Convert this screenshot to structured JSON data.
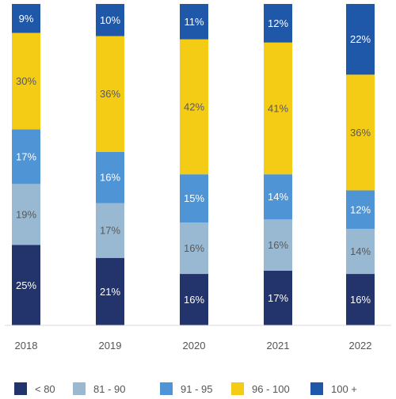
{
  "chart_data": {
    "type": "bar",
    "stacked": true,
    "normalized": true,
    "categories": [
      "2018",
      "2019",
      "2020",
      "2021",
      "2022"
    ],
    "series": [
      {
        "name": "< 80",
        "color": "#22346b",
        "values": [
          25,
          21,
          16,
          17,
          16
        ]
      },
      {
        "name": "81 - 90",
        "color": "#98b9d1",
        "values": [
          19,
          17,
          16,
          16,
          14
        ]
      },
      {
        "name": "91 - 95",
        "color": "#4f94d4",
        "values": [
          17,
          16,
          15,
          14,
          12
        ]
      },
      {
        "name": "96 - 100",
        "color": "#f4cb15",
        "values": [
          30,
          36,
          42,
          41,
          36
        ]
      },
      {
        "name": "100 +",
        "color": "#1f58a8",
        "values": [
          9,
          10,
          11,
          12,
          22
        ]
      }
    ],
    "value_suffix": "%",
    "legend_position": "bottom",
    "grid": false
  }
}
